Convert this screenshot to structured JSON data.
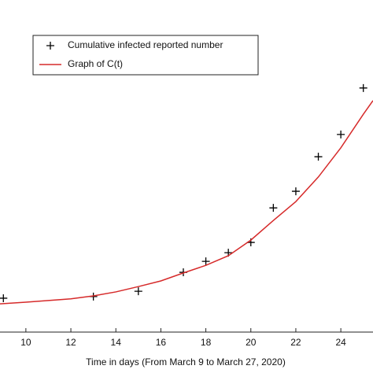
{
  "chart_data": {
    "type": "scatter",
    "x_label": "Time in days (From March 9 to March 27, 2020)",
    "xlim": [
      8.85,
      25.43
    ],
    "xticks": [
      10,
      12,
      14,
      16,
      18,
      20,
      22,
      24
    ],
    "ylim": [
      0,
      100
    ],
    "legend": "top-left",
    "series": [
      {
        "name": "Cumulative infected reported number",
        "style": "plus",
        "color": "#000000",
        "x": [
          9,
          13,
          15,
          17,
          18,
          19,
          20,
          21,
          22,
          23,
          24,
          25
        ],
        "values": [
          10.2,
          10.7,
          12.3,
          18.0,
          21.3,
          23.9,
          27.0,
          37.4,
          42.4,
          52.8,
          59.5,
          73.5
        ]
      },
      {
        "name": "Graph of C(t)",
        "style": "line",
        "color": "#d62a2a",
        "x": [
          8.85,
          10,
          11,
          12,
          13,
          14,
          15,
          16,
          17,
          18,
          19,
          20,
          21,
          22,
          23,
          24,
          25,
          25.43
        ],
        "values": [
          8.5,
          9.0,
          9.5,
          10.0,
          10.9,
          12.1,
          13.7,
          15.4,
          17.8,
          20.1,
          23.0,
          27.7,
          33.6,
          39.3,
          46.7,
          55.5,
          65.6,
          69.7
        ]
      }
    ]
  }
}
